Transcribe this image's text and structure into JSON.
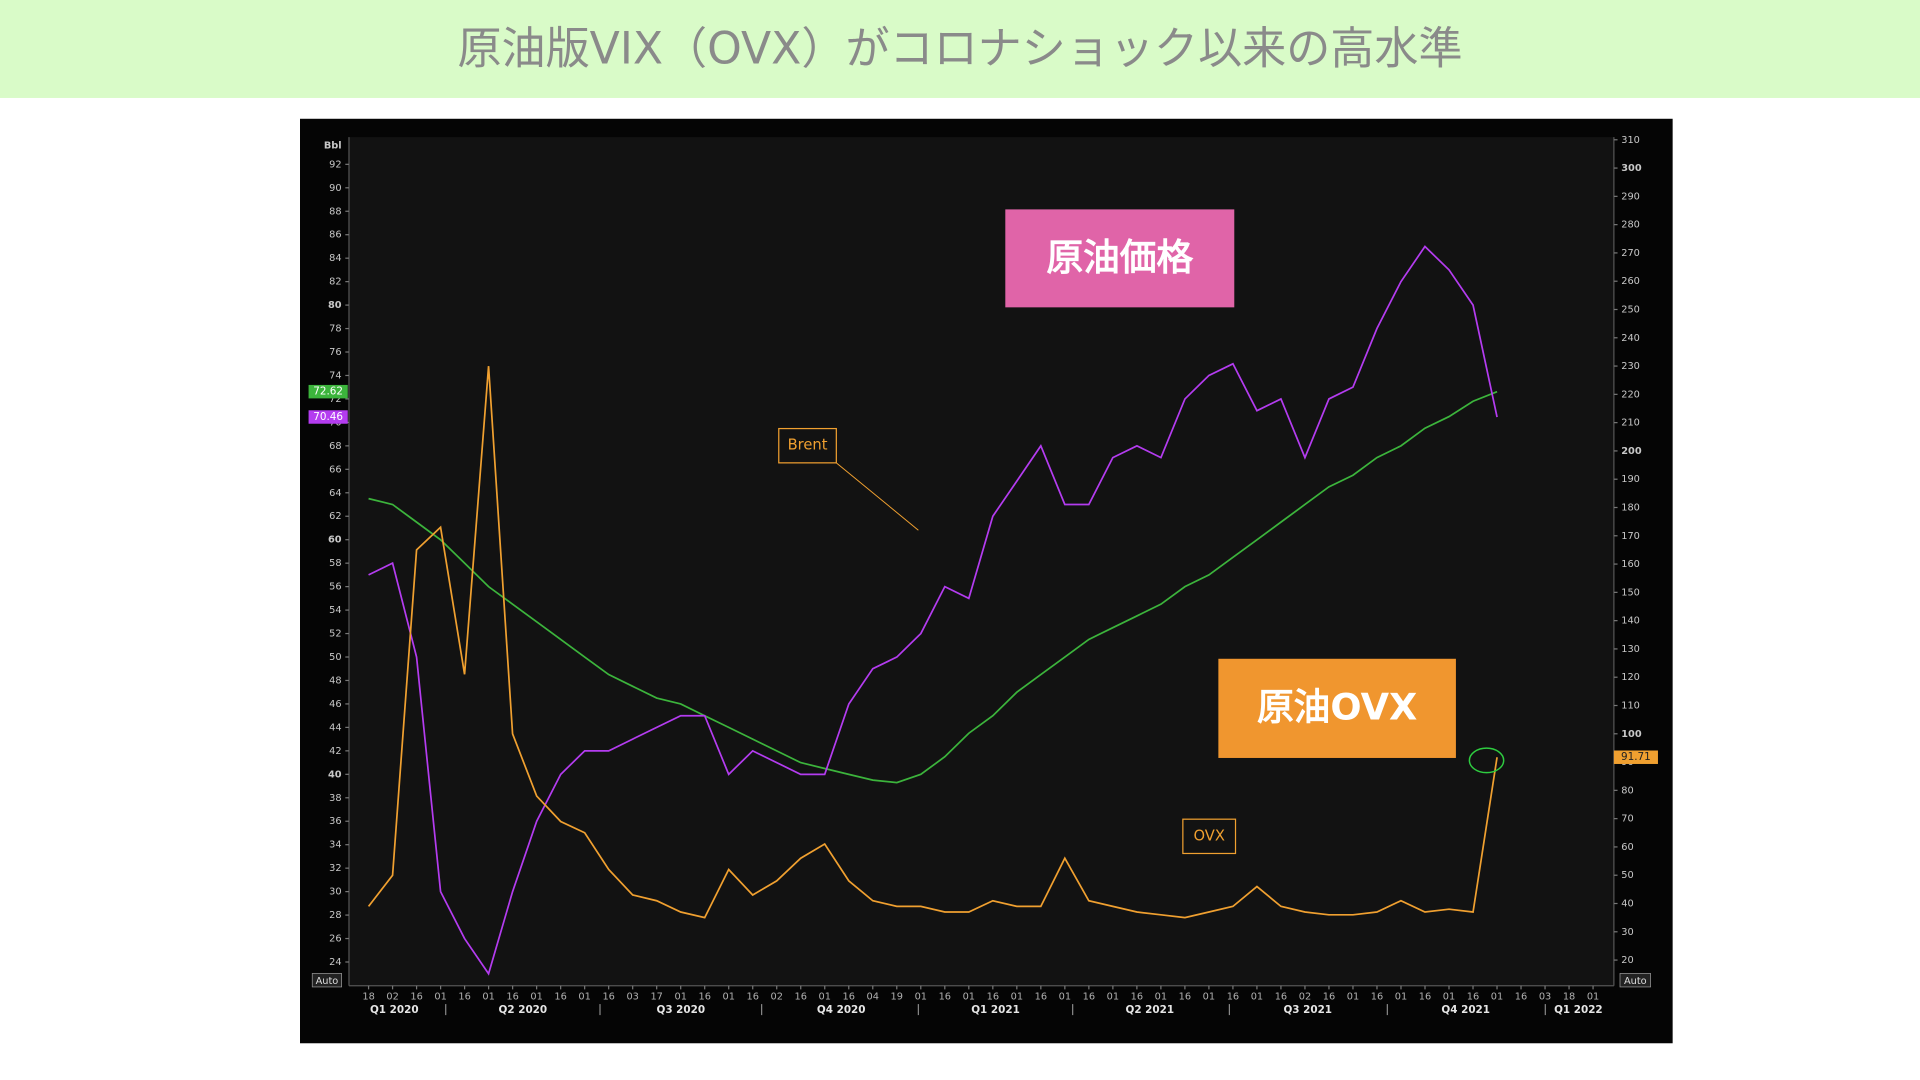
{
  "title": "原油版VIX（OVX）がコロナショック以来の高水準",
  "chart_data": {
    "type": "line",
    "y_label": "Bbl",
    "axis_mode_labels": [
      "Auto",
      "Auto"
    ],
    "categories": [
      "18",
      "02",
      "16",
      "01",
      "16",
      "01",
      "16",
      "01",
      "16",
      "01",
      "16",
      "03",
      "17",
      "01",
      "16",
      "01",
      "16",
      "02",
      "16",
      "01",
      "16",
      "04",
      "19",
      "01",
      "16",
      "01",
      "16",
      "01",
      "16",
      "01",
      "16",
      "01",
      "16",
      "01",
      "16",
      "01",
      "16",
      "01",
      "16",
      "02",
      "16",
      "01",
      "16",
      "01",
      "16",
      "01",
      "16",
      "01",
      "16",
      "03",
      "18",
      "01"
    ],
    "quarters": [
      "Q1 2020",
      "Q2 2020",
      "Q3 2020",
      "Q4 2020",
      "Q1 2021",
      "Q2 2021",
      "Q3 2021",
      "Q4 2021",
      "Q1 2022"
    ],
    "series": [
      {
        "color": "#3cb43c",
        "end_label": "72.62",
        "values": [
          63.5,
          63,
          61.5,
          60,
          58,
          56,
          54.5,
          53,
          51.5,
          50,
          48.5,
          47.5,
          46.5,
          46,
          45,
          44,
          43,
          42,
          41,
          40.5,
          40,
          39.5,
          39.3,
          40,
          41.5,
          43.5,
          45,
          47,
          48.5,
          50,
          51.5,
          52.5,
          53.5,
          54.5,
          56,
          57,
          58.5,
          60,
          61.5,
          63,
          64.5,
          65.5,
          67,
          68,
          69.5,
          70.5,
          71.8,
          72.62,
          null,
          null,
          null,
          null
        ]
      },
      {
        "name": "Brent",
        "color": "#b43cf0",
        "end_label": "70.46",
        "values": [
          57,
          58,
          50,
          30,
          26,
          23,
          30,
          36,
          40,
          42,
          42,
          43,
          44,
          45,
          45,
          40,
          42,
          41,
          40,
          40,
          46,
          49,
          50,
          52,
          56,
          55,
          62,
          65,
          68,
          63,
          63,
          67,
          68,
          67,
          72,
          74,
          75,
          71,
          72,
          67,
          72,
          73,
          78,
          82,
          85,
          83,
          80,
          70.46,
          null,
          null,
          null,
          null
        ]
      },
      {
        "name": "OVX",
        "color": "#f0a030",
        "axis": "y2",
        "end_label": "91.71",
        "values": [
          39,
          50,
          165,
          173,
          121,
          230,
          100,
          78,
          69,
          65,
          52,
          43,
          41,
          37,
          35,
          52,
          43,
          48,
          56,
          61,
          48,
          41,
          39,
          39,
          37,
          37,
          41,
          39,
          39,
          56,
          41,
          39,
          37,
          36,
          35,
          37,
          39,
          46,
          39,
          37,
          36,
          36,
          37,
          41,
          37,
          38,
          37,
          91.71,
          null,
          null,
          null,
          null
        ]
      }
    ],
    "ylim": [
      22.5,
      93.9
    ],
    "yticks": [
      24,
      26,
      28,
      30,
      32,
      34,
      36,
      38,
      40,
      42,
      44,
      46,
      48,
      50,
      52,
      54,
      56,
      58,
      60,
      62,
      64,
      66,
      68,
      70,
      72,
      74,
      76,
      78,
      80,
      82,
      84,
      86,
      88,
      90,
      92
    ],
    "y2lim": [
      13.1,
      309.2
    ],
    "y2ticks": [
      20,
      30,
      40,
      50,
      60,
      70,
      80,
      90,
      100,
      110,
      120,
      130,
      140,
      150,
      160,
      170,
      180,
      190,
      200,
      210,
      220,
      230,
      240,
      250,
      260,
      270,
      280,
      290,
      300,
      310
    ],
    "grid": false,
    "annotations": [
      "原油価格",
      "原油OVX"
    ]
  }
}
